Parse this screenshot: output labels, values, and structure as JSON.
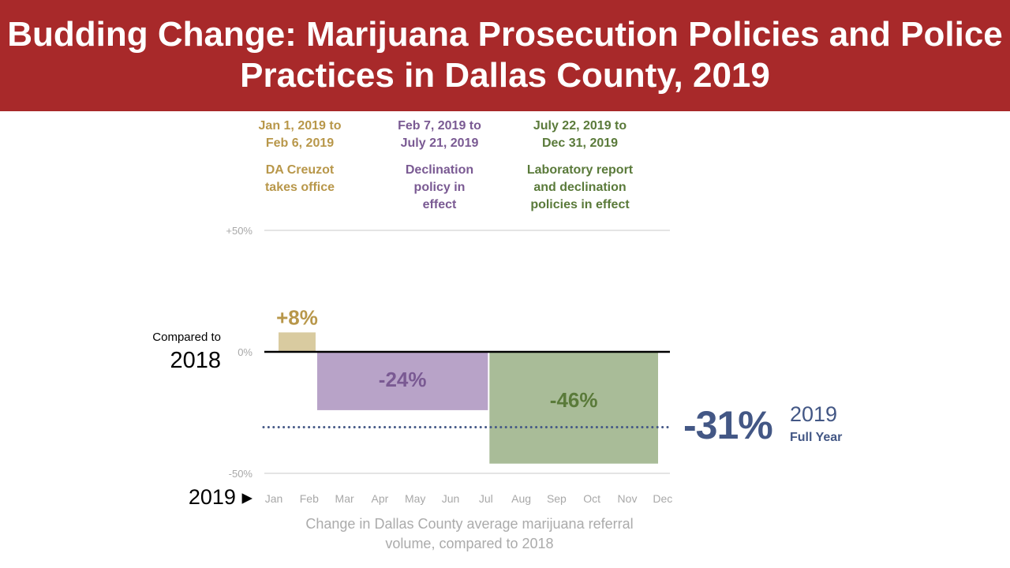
{
  "title": "Budding Change: Marijuana Prosecution Policies and Police Practices in Dallas County, 2019",
  "colors": {
    "header": "#A8292A",
    "full_year": "#435785"
  },
  "periods": [
    {
      "dates": "Jan 1, 2019 to Feb 6, 2019",
      "dates_line1": "Jan 1, 2019 to",
      "dates_line2": "Feb 6, 2019",
      "desc_lines": [
        "DA Creuzot",
        "takes office"
      ],
      "text_color": "#B8974A",
      "bar_color": "#D9CBA0"
    },
    {
      "dates": "Feb 7, 2019 to July 21, 2019",
      "dates_line1": "Feb 7, 2019 to",
      "dates_line2": "July 21, 2019",
      "desc_lines": [
        "Declination",
        "policy in",
        "effect"
      ],
      "text_color": "#7A5A93",
      "bar_color": "#B8A3C8"
    },
    {
      "dates": "July 22, 2019 to Dec 31, 2019",
      "dates_line1": "July 22, 2019 to",
      "dates_line2": "Dec 31, 2019",
      "desc_lines": [
        "Laboratory report",
        "and declination",
        "policies in effect"
      ],
      "text_color": "#5A7A3A",
      "bar_color": "#A9BC98"
    }
  ],
  "baseline_label": {
    "line1": "Compared to",
    "line2": "2018"
  },
  "year_label": "2019 ▸",
  "full_year": {
    "value": "-31%",
    "year": "2019",
    "label": "Full Year"
  },
  "caption": {
    "line1": "Change in Dallas County average marijuana referral",
    "line2": "volume, compared to 2018"
  },
  "chart_data": {
    "type": "bar",
    "ylim": [
      -50,
      50
    ],
    "y_ticks": [
      50,
      0,
      -50
    ],
    "y_tick_labels": [
      "+50%",
      "0%",
      "-50%"
    ],
    "x_tick_labels": [
      "Jan",
      "Feb",
      "Mar",
      "Apr",
      "May",
      "Jun",
      "Jul",
      "Aug",
      "Sep",
      "Oct",
      "Nov",
      "Dec"
    ],
    "bars": [
      {
        "start": "2019-01-01",
        "end": "2019-02-06",
        "value": 8,
        "label": "+8%"
      },
      {
        "start": "2019-02-07",
        "end": "2019-07-21",
        "value": -24,
        "label": "-24%"
      },
      {
        "start": "2019-07-22",
        "end": "2019-12-31",
        "value": -46,
        "label": "-46%"
      }
    ],
    "reference_line": {
      "value": -31,
      "style": "dotted"
    }
  }
}
